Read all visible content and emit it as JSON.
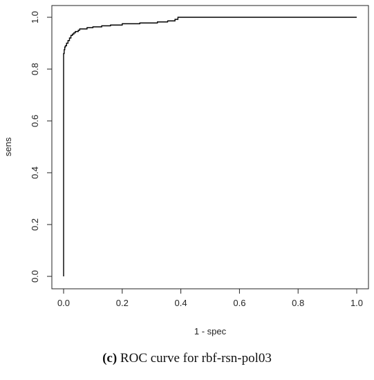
{
  "chart_data": {
    "type": "line",
    "title": "",
    "xlabel": "1 - spec",
    "ylabel": "sens",
    "xlim": [
      0,
      1
    ],
    "ylim": [
      0,
      1
    ],
    "xticks": [
      "0.0",
      "0.2",
      "0.4",
      "0.6",
      "0.8",
      "1.0"
    ],
    "yticks": [
      "0.0",
      "0.2",
      "0.4",
      "0.6",
      "0.8",
      "1.0"
    ],
    "grid": false,
    "legend": "none",
    "line_color": "#000000",
    "series": [
      {
        "x": [
          0.0,
          0.0,
          0.002,
          0.002,
          0.004,
          0.004,
          0.006,
          0.006,
          0.01,
          0.01,
          0.015,
          0.015,
          0.02,
          0.02,
          0.025,
          0.025,
          0.03,
          0.03,
          0.035,
          0.035,
          0.04,
          0.04,
          0.05,
          0.05,
          0.055,
          0.055,
          0.08,
          0.08,
          0.1,
          0.1,
          0.13,
          0.13,
          0.16,
          0.16,
          0.2,
          0.2,
          0.26,
          0.26,
          0.32,
          0.32,
          0.355,
          0.355,
          0.38,
          0.38,
          0.39,
          0.39,
          1.0
        ],
        "y": [
          0.0,
          0.86,
          0.86,
          0.875,
          0.875,
          0.885,
          0.885,
          0.89,
          0.89,
          0.9,
          0.9,
          0.91,
          0.91,
          0.92,
          0.92,
          0.93,
          0.93,
          0.935,
          0.935,
          0.94,
          0.94,
          0.945,
          0.945,
          0.95,
          0.95,
          0.955,
          0.955,
          0.96,
          0.96,
          0.963,
          0.963,
          0.967,
          0.967,
          0.97,
          0.97,
          0.975,
          0.975,
          0.978,
          0.978,
          0.982,
          0.982,
          0.986,
          0.986,
          0.992,
          0.992,
          1.0,
          1.0
        ]
      }
    ]
  },
  "caption": {
    "label": "(c)",
    "text": " ROC curve for rbf-rsn-pol03"
  }
}
